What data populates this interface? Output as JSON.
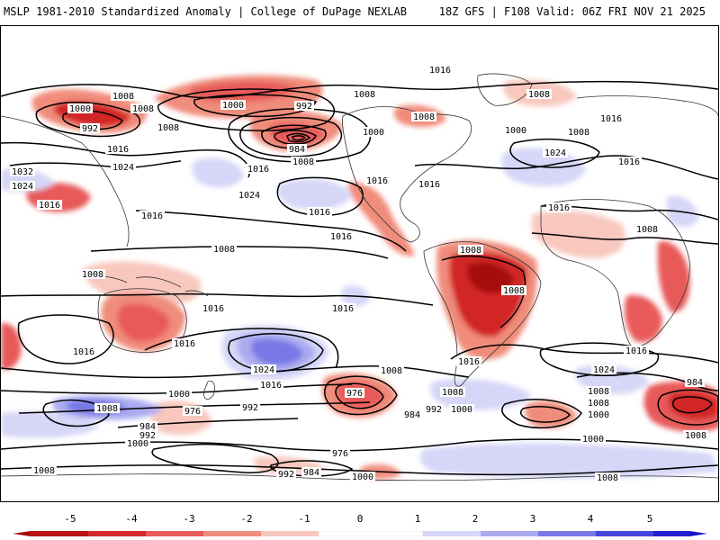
{
  "header": {
    "title_left": "MSLP 1981-2010 Standardized Anomaly | College of DuPage NEXLAB",
    "title_right": "18Z GFS | F108 Valid: 06Z FRI NOV 21 2025"
  },
  "colors": {
    "neg5": "#a50a0a",
    "neg4": "#d22828",
    "neg3": "#e85a5a",
    "neg2": "#f08c7c",
    "neg1": "#f8c8be",
    "zero": "#ffffff",
    "pos1": "#d6d6f8",
    "pos2": "#aaaaf0",
    "pos3": "#7878e6",
    "pos4": "#4646dc",
    "pos5": "#1414c8"
  },
  "colorbar": {
    "ticks": [
      "-5",
      "-4",
      "-3",
      "-2",
      "-1",
      "0",
      "1",
      "2",
      "3",
      "4",
      "5"
    ]
  },
  "contour_labels": [
    {
      "text": "1016"
    },
    {
      "text": "1008"
    },
    {
      "text": "1000"
    },
    {
      "text": "992"
    },
    {
      "text": "1008"
    },
    {
      "text": "1008"
    },
    {
      "text": "1000"
    },
    {
      "text": "1008"
    },
    {
      "text": "1008"
    },
    {
      "text": "992"
    },
    {
      "text": "1008"
    },
    {
      "text": "1016"
    },
    {
      "text": "984"
    },
    {
      "text": "1000"
    },
    {
      "text": "1016"
    },
    {
      "text": "1008"
    },
    {
      "text": "1000"
    },
    {
      "text": "1008"
    },
    {
      "text": "1024"
    },
    {
      "text": "1032"
    },
    {
      "text": "1024"
    },
    {
      "text": "1016"
    },
    {
      "text": "1016"
    },
    {
      "text": "1024"
    },
    {
      "text": "1016"
    },
    {
      "text": "1016"
    },
    {
      "text": "1016"
    },
    {
      "text": "1016"
    },
    {
      "text": "1024"
    },
    {
      "text": "1016"
    },
    {
      "text": "1016"
    },
    {
      "text": "1008"
    },
    {
      "text": "1008"
    },
    {
      "text": "1008"
    },
    {
      "text": "1008"
    },
    {
      "text": "1008"
    },
    {
      "text": "1016"
    },
    {
      "text": "1016"
    },
    {
      "text": "1016"
    },
    {
      "text": "1016"
    },
    {
      "text": "1016"
    },
    {
      "text": "1024"
    },
    {
      "text": "1016"
    },
    {
      "text": "1016"
    },
    {
      "text": "1008"
    },
    {
      "text": "1016"
    },
    {
      "text": "1024"
    },
    {
      "text": "1008"
    },
    {
      "text": "1000"
    },
    {
      "text": "1008"
    },
    {
      "text": "976"
    },
    {
      "text": "984"
    },
    {
      "text": "992"
    },
    {
      "text": "1000"
    },
    {
      "text": "1000"
    },
    {
      "text": "1008"
    },
    {
      "text": "992"
    },
    {
      "text": "1008"
    },
    {
      "text": "976"
    },
    {
      "text": "984"
    },
    {
      "text": "992"
    },
    {
      "text": "1000"
    },
    {
      "text": "1008"
    },
    {
      "text": "976"
    },
    {
      "text": "992"
    },
    {
      "text": "984"
    },
    {
      "text": "1000"
    },
    {
      "text": "1000"
    },
    {
      "text": "1008"
    },
    {
      "text": "984"
    },
    {
      "text": "1008"
    }
  ]
}
